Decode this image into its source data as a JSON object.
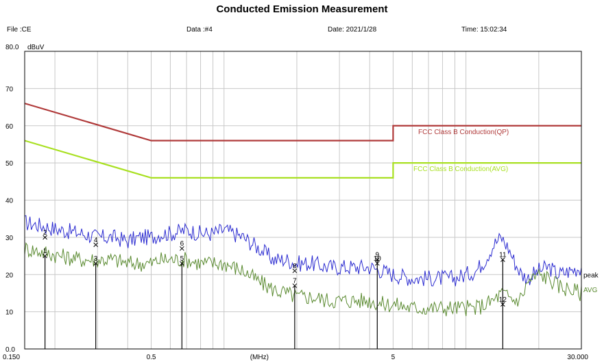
{
  "header": {
    "title": "Conducted Emission Measurement",
    "file": "File :CE",
    "data": "Data :#4",
    "date": "Date: 2021/1/28",
    "time": "Time: 15:02:34"
  },
  "chart_data": {
    "type": "line",
    "title": "Conducted Emission Measurement",
    "ylabel": "dBuV",
    "xlabel": "[MHz]",
    "y_top_label": "80.0",
    "xscale": "log",
    "xlim": [
      0.15,
      30.0
    ],
    "ylim": [
      0,
      80
    ],
    "grid": true,
    "x_tick_labels": [
      {
        "value": 0.15,
        "label": "0.150"
      },
      {
        "value": 0.5,
        "label": "0.5"
      },
      {
        "value": 1.4,
        "label": "(MHz)"
      },
      {
        "value": 5,
        "label": "5"
      },
      {
        "value": 30,
        "label": "30.000"
      }
    ],
    "y_tick_labels": [
      {
        "value": 0,
        "label": "0.0"
      },
      {
        "value": 10,
        "label": "10"
      },
      {
        "value": 20,
        "label": "20"
      },
      {
        "value": 30,
        "label": "30"
      },
      {
        "value": 40,
        "label": "40"
      },
      {
        "value": 50,
        "label": "50"
      },
      {
        "value": 60,
        "label": "60"
      },
      {
        "value": 70,
        "label": "70"
      }
    ],
    "limit_lines": [
      {
        "name": "FCC Class B Conduction(QP)",
        "color": "#b03a3a",
        "x": [
          0.15,
          0.5,
          5,
          5,
          30
        ],
        "y": [
          66,
          56,
          56,
          60,
          60
        ]
      },
      {
        "name": "FCC Class B Conduction(AVG)",
        "color": "#a8e020",
        "x": [
          0.15,
          0.5,
          5,
          5,
          30
        ],
        "y": [
          56,
          46,
          46,
          50,
          50
        ]
      }
    ],
    "series": [
      {
        "name": "peak",
        "color": "#2a2ad0",
        "x": [
          0.15,
          0.18,
          0.21,
          0.26,
          0.3,
          0.35,
          0.4,
          0.45,
          0.5,
          0.55,
          0.6,
          0.7,
          0.8,
          0.9,
          1.0,
          1.2,
          1.4,
          1.6,
          1.8,
          2.0,
          2.3,
          2.7,
          3.0,
          3.5,
          4.0,
          4.5,
          5.0,
          6.0,
          7.0,
          8.0,
          9.0,
          10,
          11,
          12,
          13,
          14,
          15,
          16,
          17,
          18,
          20,
          22,
          24,
          27,
          30
        ],
        "y": [
          34,
          33,
          32,
          31,
          30,
          30,
          29,
          30,
          30,
          31,
          31,
          32,
          31,
          31,
          32,
          30,
          27,
          24,
          24,
          23,
          23,
          22,
          22,
          22,
          22,
          21,
          20,
          19,
          19,
          19,
          19,
          20,
          21,
          24,
          28,
          30,
          27,
          23,
          20,
          19,
          21,
          22,
          20,
          21,
          22
        ]
      },
      {
        "name": "AVG",
        "color": "#5a8a30",
        "x": [
          0.15,
          0.18,
          0.21,
          0.26,
          0.3,
          0.35,
          0.4,
          0.45,
          0.5,
          0.55,
          0.6,
          0.7,
          0.8,
          0.9,
          1.0,
          1.2,
          1.4,
          1.6,
          1.8,
          2.0,
          2.3,
          2.7,
          3.0,
          3.5,
          4.0,
          4.5,
          5.0,
          6.0,
          7.0,
          8.0,
          9.0,
          10,
          11,
          12,
          13,
          14,
          15,
          16,
          17,
          18,
          20,
          22,
          24,
          27,
          30
        ],
        "y": [
          27,
          26,
          25,
          24,
          24,
          24,
          23,
          23,
          23,
          24,
          24,
          24,
          23,
          23,
          23,
          21,
          18,
          16,
          15,
          14,
          14,
          13,
          13,
          13,
          13,
          12,
          12,
          11,
          11,
          11,
          11,
          11,
          11,
          12,
          13,
          15,
          14,
          13,
          14,
          18,
          20,
          19,
          17,
          16,
          15
        ]
      }
    ],
    "markers": [
      {
        "label": "1",
        "x": 0.182,
        "y": 25
      },
      {
        "label": "2",
        "x": 0.182,
        "y": 30
      },
      {
        "label": "3",
        "x": 0.295,
        "y": 23
      },
      {
        "label": "4",
        "x": 0.295,
        "y": 28
      },
      {
        "label": "5",
        "x": 0.67,
        "y": 23
      },
      {
        "label": "6",
        "x": 0.67,
        "y": 27
      },
      {
        "label": "7",
        "x": 1.96,
        "y": 17
      },
      {
        "label": "8",
        "x": 1.96,
        "y": 21
      },
      {
        "label": "9",
        "x": 4.3,
        "y": 24
      },
      {
        "label": "10",
        "x": 4.3,
        "y": 23
      },
      {
        "label": "11",
        "x": 14.2,
        "y": 24
      },
      {
        "label": "12",
        "x": 14.2,
        "y": 12
      }
    ],
    "legend": [
      {
        "text": "FCC Class B Conduction(QP)",
        "color": "#b03a3a"
      },
      {
        "text": "FCC Class B Conduction(AVG)",
        "color": "#a8e020"
      }
    ],
    "series_end_labels": [
      {
        "text": "peak",
        "color": "#000000"
      },
      {
        "text": "AVG",
        "color": "#5a8a30"
      }
    ]
  }
}
